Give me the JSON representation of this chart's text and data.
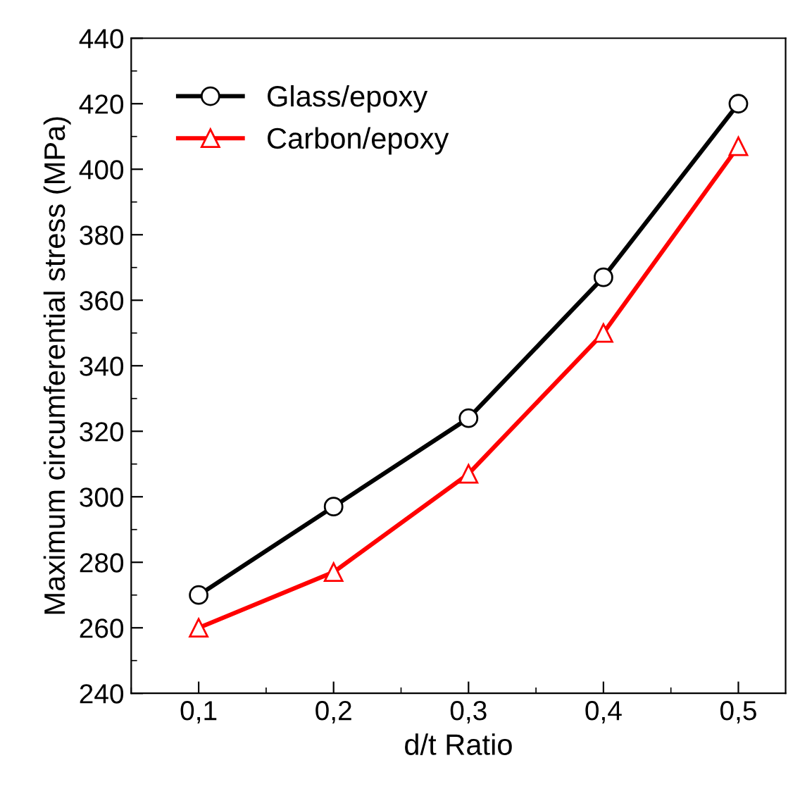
{
  "chart_data": {
    "type": "line",
    "xlabel": "d/t Ratio",
    "ylabel": "Maximum circumferential stress (MPa)",
    "x": [
      0.1,
      0.2,
      0.3,
      0.4,
      0.5
    ],
    "series": [
      {
        "name": "Glass/epoxy",
        "color": "#000000",
        "marker": "circle",
        "values": [
          270,
          297,
          324,
          367,
          420
        ]
      },
      {
        "name": "Carbon/epoxy",
        "color": "#ff0000",
        "marker": "triangle",
        "values": [
          260,
          277,
          307,
          350,
          407
        ]
      }
    ],
    "xlim": [
      0.05,
      0.535
    ],
    "ylim": [
      240,
      440
    ],
    "xticks": [
      {
        "value": 0.1,
        "label": "0,1"
      },
      {
        "value": 0.2,
        "label": "0,2"
      },
      {
        "value": 0.3,
        "label": "0,3"
      },
      {
        "value": 0.4,
        "label": "0,4"
      },
      {
        "value": 0.5,
        "label": "0,5"
      }
    ],
    "yticks": [
      240,
      260,
      280,
      300,
      320,
      340,
      360,
      380,
      400,
      420,
      440
    ],
    "grid": false,
    "legend": "top left",
    "line_style": "solid"
  }
}
